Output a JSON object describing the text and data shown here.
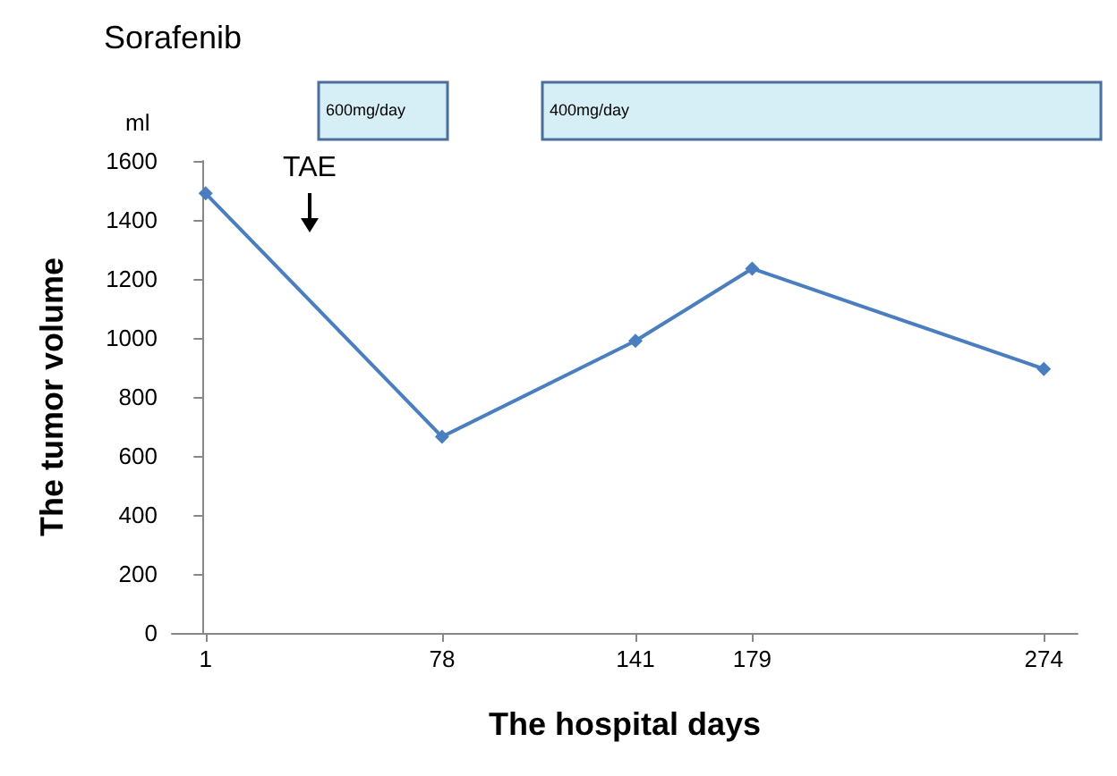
{
  "chart_data": {
    "type": "line",
    "xlabel": "The hospital days",
    "ylabel": "The tumor volume",
    "x": [
      1,
      78,
      141,
      179,
      274
    ],
    "series": [
      {
        "color": "#4a7ebf",
        "values": [
          1490,
          665,
          990,
          1235,
          895
        ]
      }
    ],
    "xlim": [
      -10,
      285
    ],
    "xticks": [
      1,
      78,
      141,
      179,
      274
    ],
    "ylim": [
      0,
      1600
    ],
    "yticks": [
      0,
      200,
      400,
      600,
      800,
      1000,
      1200,
      1400,
      1600
    ],
    "grid": false,
    "marker": "diamond",
    "line_style": "solid",
    "annotations": [
      "Sorafenib",
      "ml",
      "TAE",
      "600mg/day",
      "400mg/day"
    ]
  }
}
